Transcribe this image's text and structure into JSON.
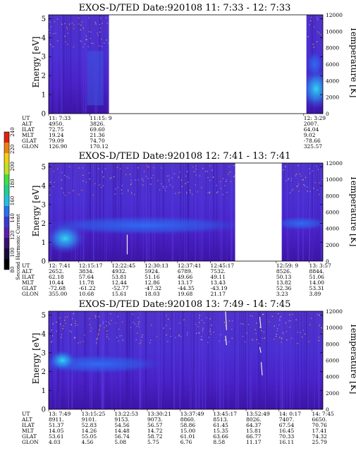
{
  "colorbar": {
    "label": "Second Harmonic Current",
    "ticks": [
      "80",
      "100",
      "120",
      "140",
      "160",
      "180",
      "200",
      "220",
      "240"
    ],
    "colors": [
      "#000000",
      "#1a0a3a",
      "#3a1070",
      "#5a20b0",
      "#3a3ad0",
      "#2a70f0",
      "#20c0e0",
      "#20d090",
      "#40e040",
      "#c0e020",
      "#f0d010",
      "#f08010",
      "#e02010"
    ]
  },
  "panels": [
    {
      "title": "EXOS-D/TED   Date:920108  11: 7:33 - 12: 7:33",
      "ylabel": "Energy [eV]",
      "y2label": "Temperature [K]",
      "yticks": [
        "0",
        "1",
        "2",
        "3",
        "4",
        "5"
      ],
      "y2ticks": [
        "0",
        "2000",
        "4000",
        "6000",
        "8000",
        "10000",
        "12000"
      ],
      "ylim": [
        0,
        5.2
      ],
      "y2lim": [
        0,
        12000
      ],
      "data_segments": [
        [
          0.0,
          0.22
        ],
        [
          0.94,
          1.0
        ]
      ],
      "eph_labels": [
        "UT",
        "ALT",
        "ILAT",
        "MLT",
        "GLAT",
        "GLON"
      ],
      "eph_columns": [
        {
          "pos": 0.0,
          "values": [
            "11: 7:33",
            "4950.",
            "72.75",
            "19.24",
            "79.09",
            "126.90"
          ]
        },
        {
          "pos": 0.15,
          "values": [
            "11:15: 9",
            "3826.",
            "69.60",
            "21.36",
            "74.70",
            "170.12"
          ]
        },
        {
          "pos": 0.93,
          "values": [
            "12: 3:29",
            "2007.",
            "64.04",
            "9.02",
            "-78.66",
            "325.57"
          ]
        }
      ]
    },
    {
      "title": "EXOS-D/TED   Date:920108  12: 7:41 - 13: 7:41",
      "ylabel": "Energy [eV]",
      "y2label": "Temperature [K]",
      "yticks": [
        "0",
        "1",
        "2",
        "3",
        "4",
        "5"
      ],
      "y2ticks": [
        "0",
        "2000",
        "4000",
        "6000",
        "8000",
        "10000",
        "12000"
      ],
      "ylim": [
        0,
        5.2
      ],
      "y2lim": [
        0,
        12000
      ],
      "data_segments": [
        [
          0.0,
          0.68
        ],
        [
          0.85,
          1.0
        ]
      ],
      "eph_labels": [
        "UT",
        "ALT",
        "ILAT",
        "MLT",
        "GLAT",
        "GLON"
      ],
      "eph_columns": [
        {
          "pos": 0.0,
          "values": [
            "12: 7:41",
            "2652.",
            "62.18",
            "10.44",
            "-72.68",
            "355.00"
          ]
        },
        {
          "pos": 0.11,
          "values": [
            "12:15:17",
            "3834.",
            "57.64",
            "11.78",
            "-61.22",
            "10.68"
          ]
        },
        {
          "pos": 0.23,
          "values": [
            "12:22:45",
            "4932.",
            "53.81",
            "12.44",
            "-52.77",
            "15.61"
          ]
        },
        {
          "pos": 0.35,
          "values": [
            "12:30:13",
            "5924.",
            "51.16",
            "12.86",
            "-47.32",
            "18.03"
          ]
        },
        {
          "pos": 0.47,
          "values": [
            "12:37:41",
            "6789.",
            "49.66",
            "13.17",
            "-44.35",
            "19.68"
          ]
        },
        {
          "pos": 0.59,
          "values": [
            "12:45:17",
            "7532.",
            "49.11",
            "13.43",
            "-43.19",
            "21.17"
          ]
        },
        {
          "pos": 0.83,
          "values": [
            "12:59: 9",
            "8526.",
            "50.13",
            "13.82",
            "52.36",
            "3.23"
          ]
        },
        {
          "pos": 0.95,
          "values": [
            "13: 3:57",
            "8844.",
            "51.06",
            "14.00",
            "53.31",
            "3.89"
          ]
        }
      ]
    },
    {
      "title": "EXOS-D/TED   Date:920108  13: 7:49 - 14: 7:45",
      "ylabel": "Energy [eV]",
      "y2label": "Temperature [K]",
      "yticks": [
        "0",
        "1",
        "2",
        "3",
        "4",
        "5"
      ],
      "y2ticks": [
        "0",
        "2000",
        "4000",
        "6000",
        "8000",
        "10000",
        "12000"
      ],
      "ylim": [
        0,
        5.2
      ],
      "y2lim": [
        0,
        12000
      ],
      "data_segments": [
        [
          0.0,
          1.0
        ]
      ],
      "eph_labels": [
        "UT",
        "ALT",
        "ILAT",
        "MLT",
        "GLAT",
        "GLON"
      ],
      "eph_columns": [
        {
          "pos": 0.0,
          "values": [
            "13: 7:49",
            "8911.",
            "51.37",
            "14.05",
            "53.61",
            "4.03"
          ]
        },
        {
          "pos": 0.12,
          "values": [
            "13:15:25",
            "9101.",
            "52.83",
            "14.26",
            "55.05",
            "4.56"
          ]
        },
        {
          "pos": 0.24,
          "values": [
            "13:22:53",
            "9153.",
            "54.56",
            "14.48",
            "56.74",
            "5.08"
          ]
        },
        {
          "pos": 0.36,
          "values": [
            "13:30:21",
            "9073.",
            "56.57",
            "14.72",
            "58.72",
            "5.75"
          ]
        },
        {
          "pos": 0.48,
          "values": [
            "13:37:49",
            "8860.",
            "58.86",
            "15.00",
            "61.01",
            "6.76"
          ]
        },
        {
          "pos": 0.6,
          "values": [
            "13:45:17",
            "8513.",
            "61.45",
            "15.35",
            "63.66",
            "8.58"
          ]
        },
        {
          "pos": 0.72,
          "values": [
            "13:52:49",
            "8026.",
            "64.37",
            "15.81",
            "66.77",
            "11.17"
          ]
        },
        {
          "pos": 0.84,
          "values": [
            "14: 0:17",
            "7407.",
            "67.54",
            "16.45",
            "70.33",
            "16.11"
          ]
        },
        {
          "pos": 0.96,
          "values": [
            "14: 7:45",
            "6650.",
            "70.76",
            "17.41",
            "74.32",
            "25.79"
          ]
        }
      ]
    }
  ],
  "chart_data": [
    {
      "type": "heatmap",
      "title": "EXOS-D/TED   Date:920108  11: 7:33 - 12: 7:33",
      "ylabel": "Energy [eV]",
      "y2label": "Temperature [K]",
      "ylim": [
        0,
        5.2
      ],
      "y2lim": [
        0,
        12000
      ],
      "colorbar_label": "Second Harmonic Current",
      "colorbar_range": [
        80,
        240
      ]
    },
    {
      "type": "heatmap",
      "title": "EXOS-D/TED   Date:920108  12: 7:41 - 13: 7:41",
      "ylabel": "Energy [eV]",
      "y2label": "Temperature [K]",
      "ylim": [
        0,
        5.2
      ],
      "y2lim": [
        0,
        12000
      ],
      "colorbar_label": "Second Harmonic Current",
      "colorbar_range": [
        80,
        240
      ]
    },
    {
      "type": "heatmap",
      "title": "EXOS-D/TED   Date:920108  13: 7:49 - 14: 7:45",
      "ylabel": "Energy [eV]",
      "y2label": "Temperature [K]",
      "ylim": [
        0,
        5.2
      ],
      "y2lim": [
        0,
        12000
      ],
      "colorbar_label": "Second Harmonic Current",
      "colorbar_range": [
        80,
        240
      ]
    }
  ]
}
